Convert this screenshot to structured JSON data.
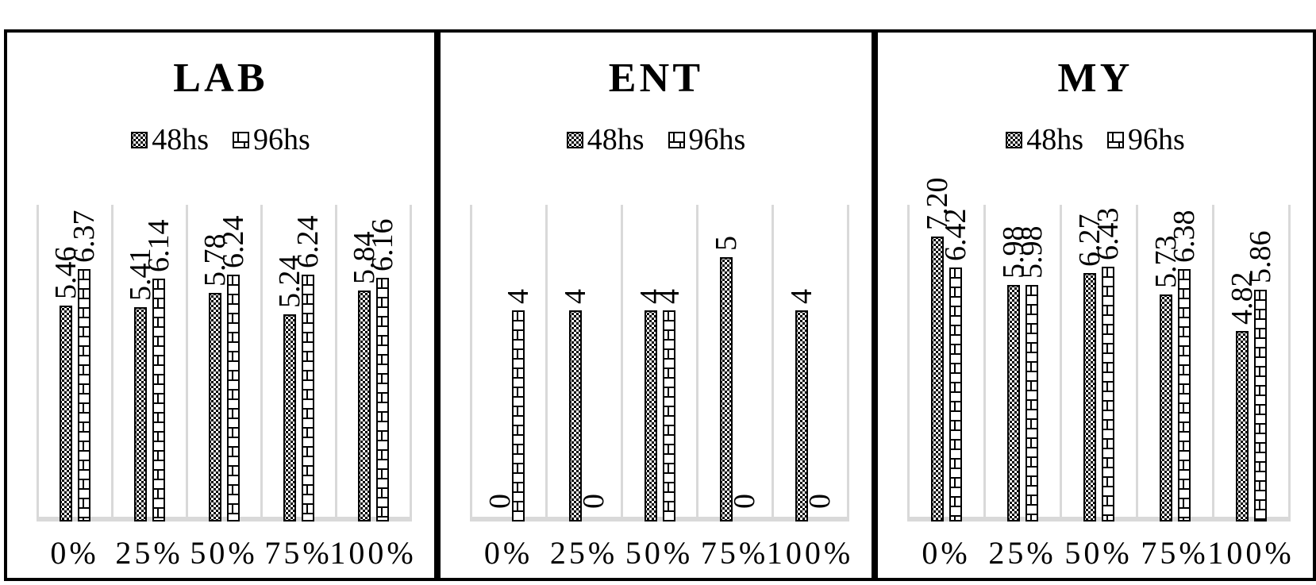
{
  "figure": {
    "legend_labels": [
      "48hs",
      "96hs"
    ],
    "pattern_names": {
      "48hs": "checker-icon",
      "96hs": "brick-icon"
    }
  },
  "colors": {
    "background": "#ffffff",
    "panel_border": "#000000",
    "bar_outline": "#000000",
    "bar_fill": "#ffffff",
    "pattern_ink": "#000000",
    "gridline": "#d9d9d9",
    "text": "#000000"
  },
  "chart_data": [
    {
      "type": "bar",
      "title": "LAB",
      "categories": [
        "0%",
        "25%",
        "50%",
        "75%",
        "100%"
      ],
      "legend_position": "top",
      "grid": "vertical-category-separators",
      "ylim": [
        0,
        8
      ],
      "series": [
        {
          "name": "48hs",
          "pattern": "checker",
          "values": [
            5.46,
            5.41,
            5.78,
            5.24,
            5.84
          ],
          "labels": [
            "5.46",
            "5.41",
            "5.78",
            "5.24",
            "5.84"
          ]
        },
        {
          "name": "96hs",
          "pattern": "brick",
          "values": [
            6.37,
            6.14,
            6.24,
            6.24,
            6.16
          ],
          "labels": [
            "6.37",
            "6.14",
            "6.24",
            "6.24",
            "6.16"
          ]
        }
      ]
    },
    {
      "type": "bar",
      "title": "ENT",
      "categories": [
        "0%",
        "25%",
        "50%",
        "75%",
        "100%"
      ],
      "legend_position": "top",
      "grid": "vertical-category-separators",
      "ylim": [
        0,
        6
      ],
      "series": [
        {
          "name": "48hs",
          "pattern": "checker",
          "values": [
            0,
            4,
            4,
            5,
            4
          ],
          "labels": [
            "0",
            "4",
            "4",
            "5",
            "4"
          ]
        },
        {
          "name": "96hs",
          "pattern": "brick",
          "values": [
            4,
            0,
            4,
            0,
            0
          ],
          "labels": [
            "4",
            "0",
            "4",
            "0",
            "0"
          ]
        }
      ]
    },
    {
      "type": "bar",
      "title": "MY",
      "categories": [
        "0%",
        "25%",
        "50%",
        "75%",
        "100%"
      ],
      "legend_position": "top",
      "grid": "vertical-category-separators",
      "ylim": [
        0,
        8
      ],
      "series": [
        {
          "name": "48hs",
          "pattern": "checker",
          "values": [
            7.2,
            5.98,
            6.27,
            5.73,
            4.82
          ],
          "labels": [
            "7.20",
            "5.98",
            "6.27",
            "5.73",
            "4.82"
          ]
        },
        {
          "name": "96hs",
          "pattern": "brick",
          "values": [
            6.42,
            5.98,
            6.43,
            6.38,
            5.86
          ],
          "labels": [
            "6.42",
            "5.98",
            "6.43",
            "6.38",
            "5.86"
          ]
        }
      ]
    }
  ]
}
